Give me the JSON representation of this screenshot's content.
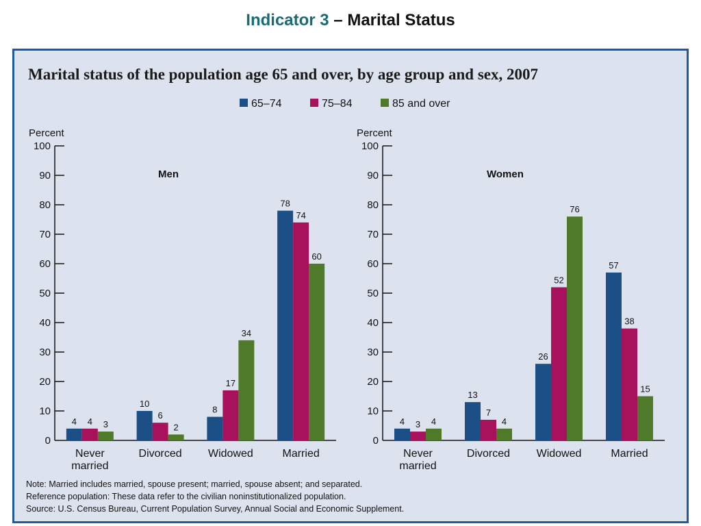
{
  "slide": {
    "title_part1": "Indicator 3",
    "title_part2": " – Marital Status"
  },
  "chart_data": {
    "type": "bar",
    "title": "Marital status of the population age 65 and over, by age group and sex, 2007",
    "ylabel": "Percent",
    "ylim": [
      0,
      100
    ],
    "yticks": [
      0,
      10,
      20,
      30,
      40,
      50,
      60,
      70,
      80,
      90,
      100
    ],
    "categories": [
      "Never married",
      "Divorced",
      "Widowed",
      "Married"
    ],
    "series_names": [
      "65–74",
      "75–84",
      "85 and over"
    ],
    "colors": [
      "#1b4f85",
      "#a8115c",
      "#4f7a2a"
    ],
    "legend_position": "top-center",
    "grid": false,
    "panels": [
      {
        "name": "Men",
        "series": [
          {
            "name": "65–74",
            "values": [
              4,
              10,
              8,
              78
            ]
          },
          {
            "name": "75–84",
            "values": [
              4,
              6,
              17,
              74
            ]
          },
          {
            "name": "85 and over",
            "values": [
              3,
              2,
              34,
              60
            ]
          }
        ]
      },
      {
        "name": "Women",
        "series": [
          {
            "name": "65–74",
            "values": [
              4,
              13,
              26,
              57
            ]
          },
          {
            "name": "75–84",
            "values": [
              3,
              7,
              52,
              38
            ]
          },
          {
            "name": "85 and over",
            "values": [
              4,
              4,
              76,
              15
            ]
          }
        ]
      }
    ],
    "notes": [
      "Note:  Married includes married, spouse present; married, spouse absent; and separated.",
      "Reference population:  These data refer to the civilian noninstitutionalized population.",
      "Source:  U.S. Census Bureau, Current Population Survey, Annual Social and Economic Supplement."
    ]
  }
}
